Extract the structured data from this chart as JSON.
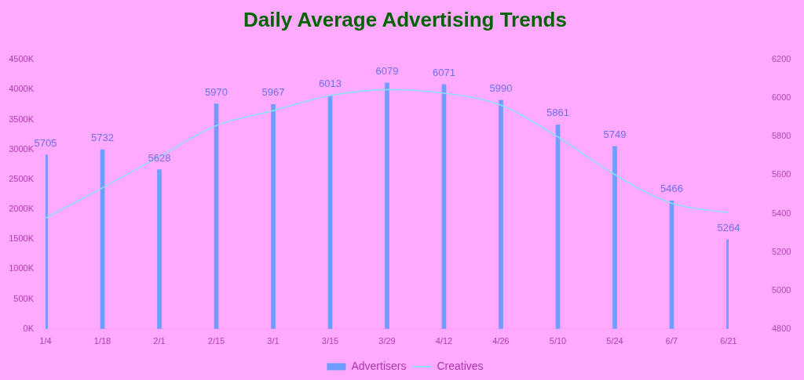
{
  "chart_data": {
    "type": "bar",
    "title": "Daily Average Advertising Trends",
    "categories": [
      "1/4",
      "1/18",
      "2/1",
      "2/15",
      "3/1",
      "3/15",
      "3/29",
      "4/12",
      "4/26",
      "5/10",
      "5/24",
      "6/7",
      "6/21"
    ],
    "series": [
      {
        "name": "Advertisers",
        "axis": "y2",
        "color": "#6e9cff",
        "values": [
          5705,
          5732,
          5628,
          5970,
          5967,
          6013,
          6079,
          6071,
          5990,
          5861,
          5749,
          5466,
          5264
        ],
        "value_labels": [
          "5705",
          "5732",
          "5628",
          "5970",
          "5967",
          "6013",
          "6079",
          "6071",
          "5990",
          "5861",
          "5749",
          "5466",
          "5264"
        ]
      },
      {
        "name": "Creatives",
        "type": "line",
        "color": "#8edcf4",
        "values": [
          1850000,
          2360000,
          2880000,
          3400000,
          3650000,
          3900000,
          4000000,
          3940000,
          3740000,
          3210000,
          2580000,
          2100000,
          1940000
        ]
      }
    ],
    "ylim": [
      0,
      4500000
    ],
    "yticks": [
      {
        "value": 0,
        "label": "0K"
      },
      {
        "value": 500000,
        "label": "500K"
      },
      {
        "value": 1000000,
        "label": "1000K"
      },
      {
        "value": 1500000,
        "label": "1500K"
      },
      {
        "value": 2000000,
        "label": "2000K"
      },
      {
        "value": 2500000,
        "label": "2500K"
      },
      {
        "value": 3000000,
        "label": "3000K"
      },
      {
        "value": 3500000,
        "label": "3500K"
      },
      {
        "value": 4000000,
        "label": "4000K"
      },
      {
        "value": 4500000,
        "label": "4500K"
      }
    ],
    "y2lim": [
      4800,
      6200
    ],
    "y2ticks": [
      4800,
      5000,
      5200,
      5400,
      5600,
      5800,
      6000,
      6200
    ],
    "legend": "bottom",
    "marker": "none"
  }
}
